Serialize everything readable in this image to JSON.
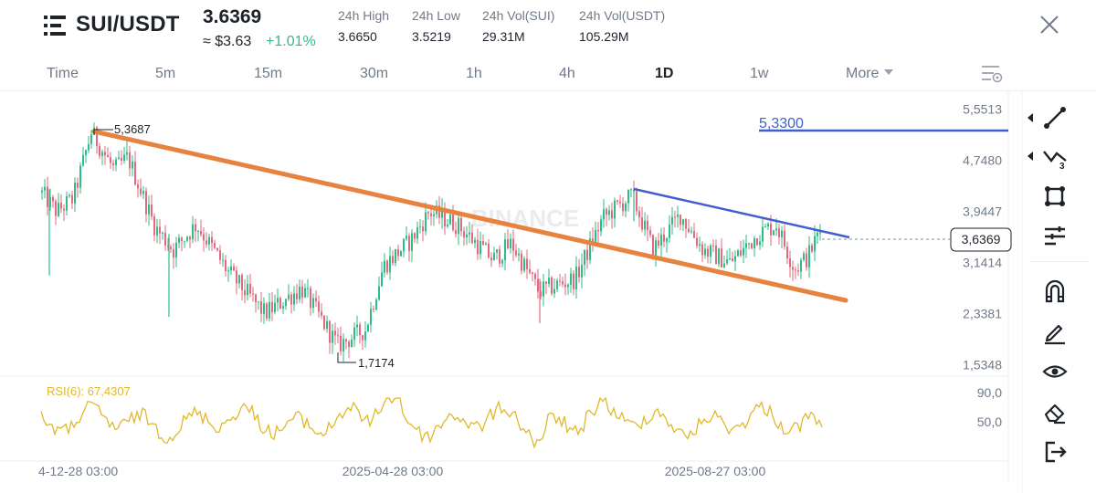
{
  "header": {
    "pair": "SUI/USDT",
    "price": "3.6369",
    "price_usd": "≈ $3.63",
    "change": "+1.01%",
    "stats": [
      {
        "label": "24h High",
        "value": "3.6650"
      },
      {
        "label": "24h Low",
        "value": "3.5219"
      },
      {
        "label": "24h Vol(SUI)",
        "value": "29.31M"
      },
      {
        "label": "24h Vol(USDT)",
        "value": "105.29M"
      }
    ]
  },
  "tabs": [
    "Time",
    "5m",
    "15m",
    "30m",
    "1h",
    "4h",
    "1D",
    "1w",
    "More"
  ],
  "active_tab": "1D",
  "chart_data": {
    "type": "candlestick",
    "watermark": "BINANCE",
    "y_ticks": [
      "5,5513",
      "4,7480",
      "3,9447",
      "3,1414",
      "2,3381",
      "1,5348"
    ],
    "current_price_label": "3,6369",
    "high_marker": "5,3687",
    "low_marker": "1,7174",
    "horizontal_line_label": "5,3300",
    "x_ticks": [
      "4-12-28 03:00",
      "2025-04-28 03:00",
      "2025-08-27 03:00"
    ],
    "rsi": {
      "label": "RSI(6): 67,4307",
      "ticks": [
        "90,0",
        "50,0"
      ]
    }
  },
  "colors": {
    "up": "#2ebd85",
    "down": "#e26a7e",
    "trendline": "#e8823f",
    "channel": "#3f5fce",
    "rsi": "#e0b92a",
    "accent": "#1e2329"
  },
  "toolbar_icons": [
    "trend-line-icon",
    "fib-icon",
    "rectangle-icon",
    "indicators-icon",
    "magnet-icon",
    "pencil-icon",
    "eye-icon",
    "eraser-icon",
    "exit-icon"
  ]
}
